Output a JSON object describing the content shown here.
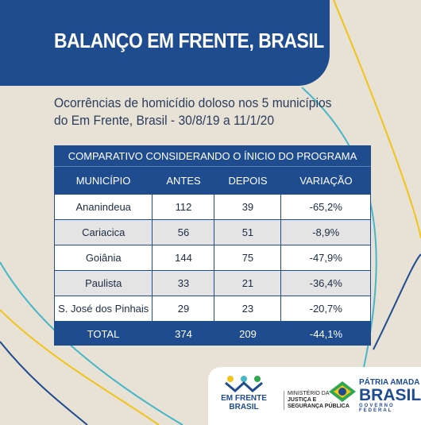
{
  "header": {
    "title": "BALANÇO EM FRENTE, BRASIL"
  },
  "subtitle": [
    "Ocorrências de homicídio doloso nos 5 municípios",
    "do Em Frente, Brasil  - 30/8/19 a 11/1/20"
  ],
  "table": {
    "caption": "COMPARATIVO CONSIDERANDO O ÍNICIO DO PROGRAMA",
    "columns": [
      "MUNICÍPIO",
      "ANTES",
      "DEPOIS",
      "VARIAÇÃO"
    ],
    "rows": [
      [
        "Ananindeua",
        "112",
        "39",
        "-65,2%"
      ],
      [
        "Cariacica",
        "56",
        "51",
        "-8,9%"
      ],
      [
        "Goiânia",
        "144",
        "75",
        "-47,9%"
      ],
      [
        "Paulista",
        "33",
        "21",
        "-36,4%"
      ],
      [
        "S. José dos Pinhais",
        "29",
        "23",
        "-20,7%"
      ]
    ],
    "total": [
      "TOTAL",
      "374",
      "209",
      "-44,1%"
    ]
  },
  "footer": {
    "program": [
      "EM FRENTE",
      "BRASIL"
    ],
    "ministry": [
      "MINISTÉRIO DA",
      "JUSTIÇA E",
      "SEGURANÇA PÚBLICA"
    ],
    "government": [
      "PÁTRIA AMADA",
      "BRASIL",
      "GOVERNO FEDERAL"
    ]
  }
}
